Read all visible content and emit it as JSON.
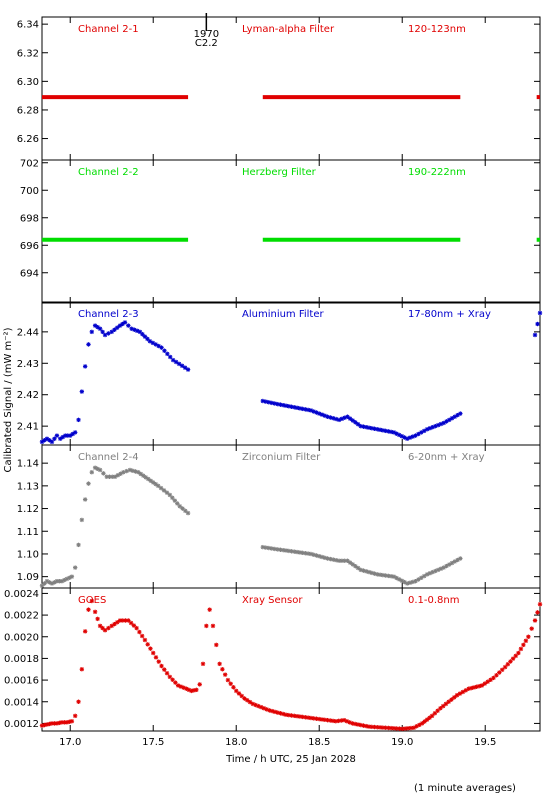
{
  "figure": {
    "ylabel": "Calibrated Signal / (mW m⁻²)",
    "xlabel": "Time / h UTC, 25 Jan 2028",
    "footnote": "(1 minute averages)",
    "xlim": [
      16.83,
      19.83
    ],
    "xticks": [
      17.0,
      17.5,
      18.0,
      18.5,
      19.0,
      19.5
    ],
    "xtick_labels": [
      "17.0",
      "17.5",
      "18.0",
      "18.5",
      "19.0",
      "19.5"
    ],
    "flare_marker": {
      "x": 17.82,
      "label_top": "1970",
      "label_bottom": "C2.2"
    }
  },
  "chart_data": [
    {
      "type": "scatter",
      "panel": "channel-2-1",
      "color": "#e00000",
      "labels": {
        "channel": "Channel 2-1",
        "filter": "Lyman-alpha Filter",
        "band": "120-123nm"
      },
      "ylim": [
        6.245,
        6.345
      ],
      "yticks": [
        6.26,
        6.28,
        6.3,
        6.32,
        6.34
      ],
      "ytick_labels": [
        "6.26",
        "6.28",
        "6.30",
        "6.32",
        "6.34"
      ],
      "segments": [
        {
          "x_start": 16.83,
          "x_end": 17.71,
          "value": 6.289
        },
        {
          "x_start": 18.16,
          "x_end": 19.35,
          "value": 6.289
        },
        {
          "x_start": 19.81,
          "x_end": 19.83,
          "value": 6.289
        }
      ]
    },
    {
      "type": "scatter",
      "panel": "channel-2-2",
      "color": "#00dd00",
      "labels": {
        "channel": "Channel 2-2",
        "filter": "Herzberg Filter",
        "band": "190-222nm"
      },
      "ylim": [
        691.8,
        702.2
      ],
      "yticks": [
        694,
        696,
        698,
        700,
        702
      ],
      "ytick_labels": [
        "694",
        "696",
        "698",
        "700",
        "702"
      ],
      "segments": [
        {
          "x_start": 16.83,
          "x_end": 17.71,
          "value": 696.4
        },
        {
          "x_start": 18.16,
          "x_end": 19.35,
          "value": 696.4
        },
        {
          "x_start": 19.81,
          "x_end": 19.83,
          "value": 696.4
        }
      ]
    },
    {
      "type": "scatter",
      "panel": "channel-2-3",
      "color": "#0000cc",
      "labels": {
        "channel": "Channel 2-3",
        "filter": "Aluminium Filter",
        "band": "17-80nm + Xray"
      },
      "ylim": [
        2.404,
        2.4495
      ],
      "yticks": [
        2.41,
        2.42,
        2.43,
        2.44
      ],
      "ytick_labels": [
        "2.41",
        "2.42",
        "2.43",
        "2.44"
      ],
      "series": [
        {
          "x": [
            16.83,
            16.86,
            16.89,
            16.92,
            16.94,
            16.97,
            17.0,
            17.03,
            17.05,
            17.07,
            17.09,
            17.11,
            17.13,
            17.15,
            17.18,
            17.21,
            17.25,
            17.3,
            17.33,
            17.37,
            17.42,
            17.48,
            17.55,
            17.62,
            17.71
          ],
          "y": [
            2.405,
            2.406,
            2.405,
            2.407,
            2.406,
            2.407,
            2.407,
            2.408,
            2.412,
            2.421,
            2.429,
            2.436,
            2.44,
            2.442,
            2.441,
            2.439,
            2.44,
            2.442,
            2.443,
            2.441,
            2.44,
            2.437,
            2.435,
            2.431,
            2.428
          ]
        },
        {
          "x": [
            18.16,
            18.25,
            18.35,
            18.45,
            18.55,
            18.62,
            18.67,
            18.75,
            18.85,
            18.95,
            19.03,
            19.08,
            19.15,
            19.25,
            19.35
          ],
          "y": [
            2.418,
            2.417,
            2.416,
            2.415,
            2.413,
            2.412,
            2.413,
            2.41,
            2.409,
            2.408,
            2.406,
            2.407,
            2.409,
            2.411,
            2.414
          ]
        },
        {
          "x": [
            19.8,
            19.83
          ],
          "y": [
            2.439,
            2.446
          ]
        }
      ]
    },
    {
      "type": "scatter",
      "panel": "channel-2-4",
      "color": "#808080",
      "labels": {
        "channel": "Channel 2-4",
        "filter": "Zirconium Filter",
        "band": "6-20nm + Xray"
      },
      "ylim": [
        1.085,
        1.148
      ],
      "yticks": [
        1.09,
        1.1,
        1.11,
        1.12,
        1.13,
        1.14
      ],
      "ytick_labels": [
        "1.09",
        "1.10",
        "1.11",
        "1.12",
        "1.13",
        "1.14"
      ],
      "series": [
        {
          "x": [
            16.83,
            16.86,
            16.89,
            16.92,
            16.95,
            16.98,
            17.01,
            17.03,
            17.05,
            17.07,
            17.09,
            17.11,
            17.13,
            17.15,
            17.18,
            17.22,
            17.27,
            17.32,
            17.36,
            17.41,
            17.47,
            17.53,
            17.6,
            17.66,
            17.71
          ],
          "y": [
            1.086,
            1.088,
            1.087,
            1.088,
            1.088,
            1.089,
            1.09,
            1.094,
            1.104,
            1.115,
            1.124,
            1.131,
            1.136,
            1.138,
            1.137,
            1.134,
            1.134,
            1.136,
            1.137,
            1.136,
            1.133,
            1.13,
            1.126,
            1.121,
            1.118
          ]
        },
        {
          "x": [
            18.16,
            18.25,
            18.35,
            18.45,
            18.55,
            18.62,
            18.67,
            18.75,
            18.85,
            18.95,
            19.03,
            19.08,
            19.15,
            19.25,
            19.35
          ],
          "y": [
            1.103,
            1.102,
            1.101,
            1.1,
            1.098,
            1.097,
            1.097,
            1.093,
            1.091,
            1.09,
            1.087,
            1.088,
            1.091,
            1.094,
            1.098
          ]
        }
      ]
    },
    {
      "type": "scatter",
      "panel": "goes-xray",
      "color": "#e00000",
      "labels": {
        "channel": "GOES",
        "filter": "Xray Sensor",
        "band": "0.1-0.8nm"
      },
      "ylim": [
        0.00113,
        0.00245
      ],
      "yticks": [
        0.0012,
        0.0014,
        0.0016,
        0.0018,
        0.002,
        0.0022,
        0.0024
      ],
      "ytick_labels": [
        "0.0012",
        "0.0014",
        "0.0016",
        "0.0018",
        "0.0020",
        "0.0022",
        "0.0024"
      ],
      "series": [
        {
          "x": [
            16.83,
            16.86,
            16.89,
            16.92,
            16.95,
            16.98,
            17.01,
            17.03,
            17.05,
            17.07,
            17.09,
            17.11,
            17.13,
            17.15,
            17.18,
            17.21,
            17.25,
            17.3,
            17.35,
            17.4,
            17.45,
            17.5,
            17.55,
            17.6,
            17.65,
            17.7,
            17.73,
            17.76,
            17.78,
            17.8,
            17.82,
            17.84,
            17.86,
            17.9,
            17.95,
            18.0,
            18.05,
            18.1,
            18.15,
            18.2,
            18.3,
            18.4,
            18.5,
            18.6,
            18.65,
            18.7,
            18.8,
            18.9,
            19.0,
            19.07,
            19.12,
            19.18,
            19.23,
            19.28,
            19.33,
            19.4,
            19.48,
            19.55,
            19.62,
            19.7,
            19.76,
            19.8,
            19.83
          ],
          "y": [
            0.00118,
            0.00119,
            0.0012,
            0.0012,
            0.00121,
            0.00121,
            0.00122,
            0.00127,
            0.0014,
            0.0017,
            0.00205,
            0.00225,
            0.00233,
            0.00223,
            0.0021,
            0.00206,
            0.0021,
            0.00215,
            0.00215,
            0.00208,
            0.00197,
            0.00185,
            0.00173,
            0.00163,
            0.00155,
            0.00152,
            0.0015,
            0.00151,
            0.00156,
            0.00175,
            0.0021,
            0.00225,
            0.0021,
            0.00175,
            0.0016,
            0.0015,
            0.00143,
            0.00138,
            0.00135,
            0.00132,
            0.00128,
            0.00126,
            0.00124,
            0.00122,
            0.00123,
            0.0012,
            0.00117,
            0.00116,
            0.00115,
            0.00116,
            0.0012,
            0.00127,
            0.00134,
            0.0014,
            0.00146,
            0.00152,
            0.00155,
            0.00162,
            0.00172,
            0.00185,
            0.002,
            0.00215,
            0.0023
          ]
        }
      ]
    }
  ]
}
